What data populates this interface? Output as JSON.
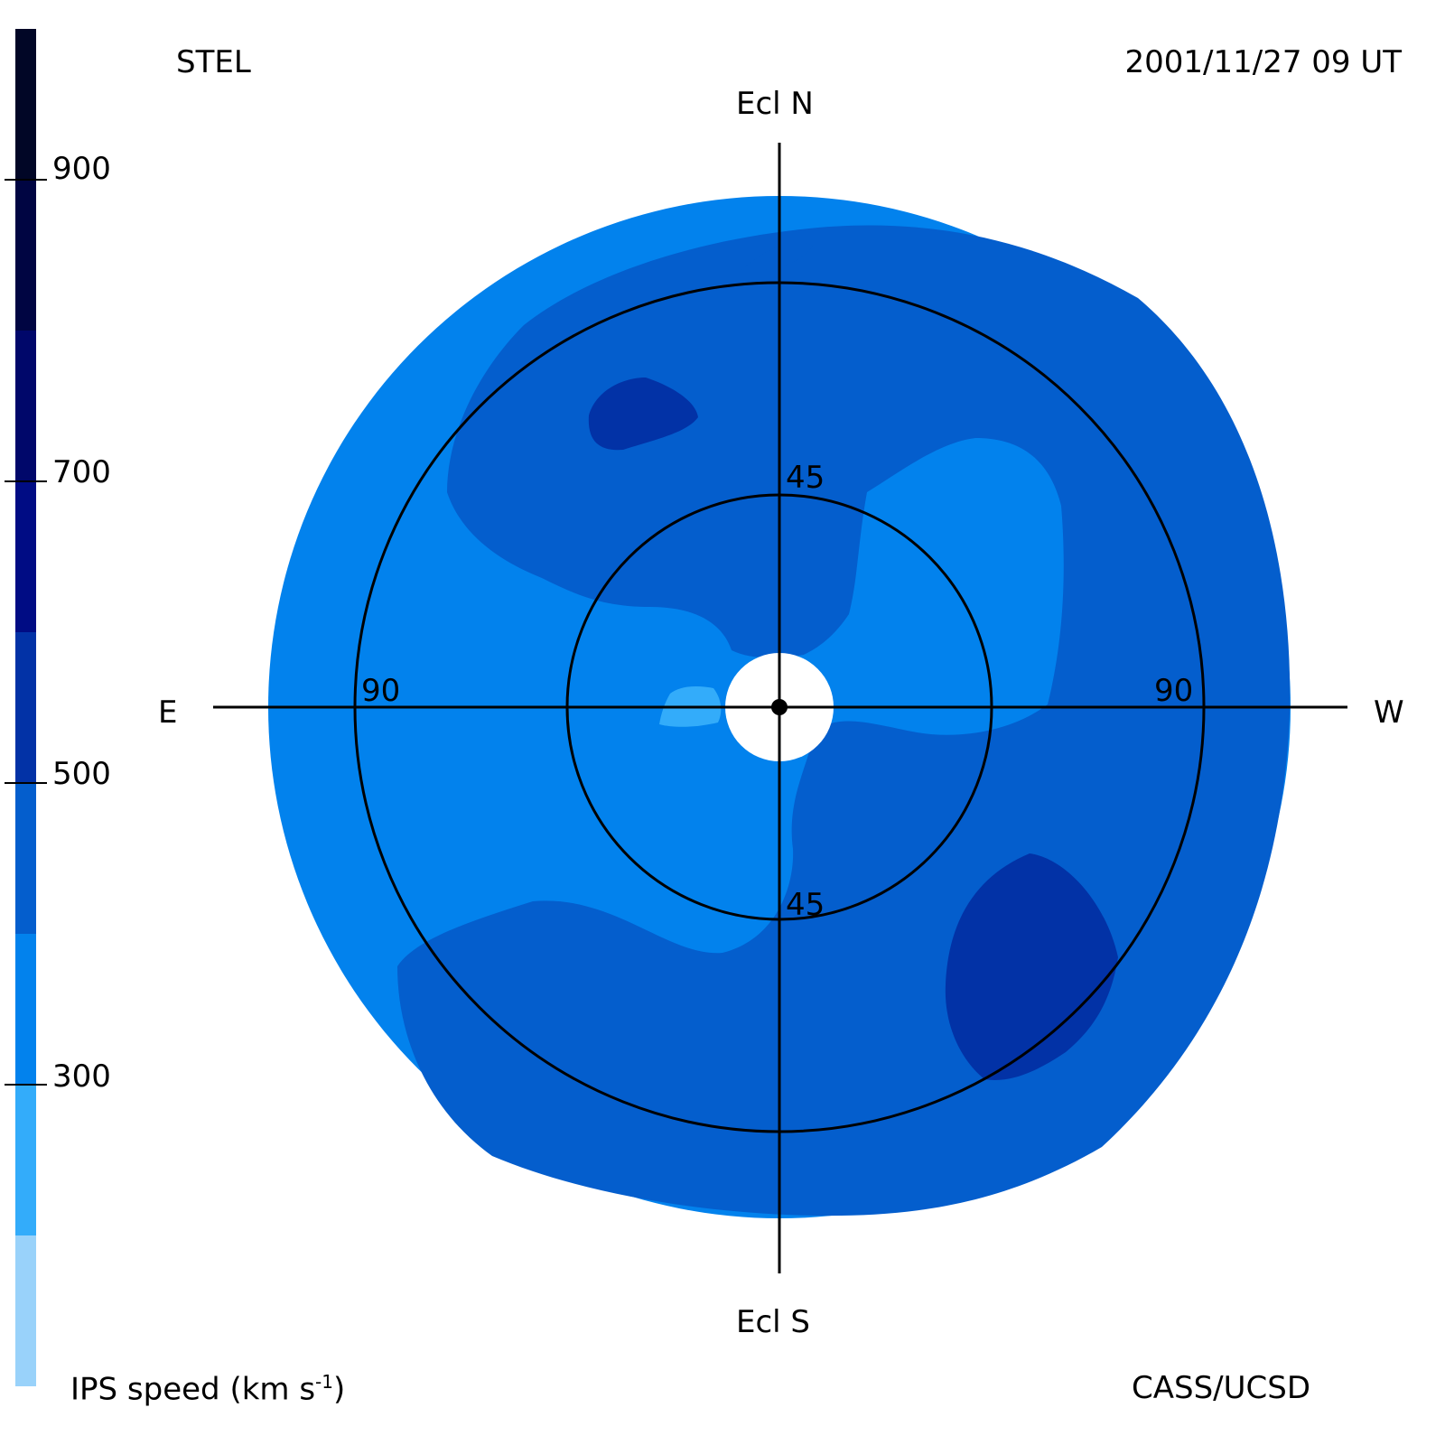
{
  "header": {
    "observatory": "STEL",
    "datetime": "2001/11/27 09 UT"
  },
  "footer": {
    "colorbar_title": "IPS speed (km s",
    "colorbar_exponent": "-1",
    "colorbar_close": ")",
    "credit": "CASS/UCSD"
  },
  "directions": {
    "north": "Ecl N",
    "south": "Ecl S",
    "east": "E",
    "west": "W"
  },
  "rings": {
    "inner_label": "45",
    "outer_label": "90"
  },
  "colorbar": {
    "ticks": [
      "300",
      "500",
      "700",
      "900"
    ],
    "tick_values": [
      300,
      500,
      700,
      900
    ],
    "range": [
      100,
      1000
    ],
    "bands": [
      {
        "min": 100,
        "max": 200,
        "color": "#99d2fa"
      },
      {
        "min": 200,
        "max": 300,
        "color": "#33acfa"
      },
      {
        "min": 300,
        "max": 400,
        "color": "#0282ed"
      },
      {
        "min": 400,
        "max": 500,
        "color": "#045ecd"
      },
      {
        "min": 500,
        "max": 600,
        "color": "#0232a6"
      },
      {
        "min": 600,
        "max": 700,
        "color": "#000c84"
      },
      {
        "min": 700,
        "max": 800,
        "color": "#00076a"
      },
      {
        "min": 800,
        "max": 900,
        "color": "#000542"
      },
      {
        "min": 900,
        "max": 1000,
        "color": "#010626"
      }
    ]
  },
  "map": {
    "outer_elongation_deg": 90,
    "inner_elongation_deg": 45,
    "colors": {
      "light": "#33acfa",
      "medium": "#0282ed",
      "dark": "#045ecd",
      "darkest": "#0232a6",
      "sun_occulter": "#ffffff"
    }
  }
}
